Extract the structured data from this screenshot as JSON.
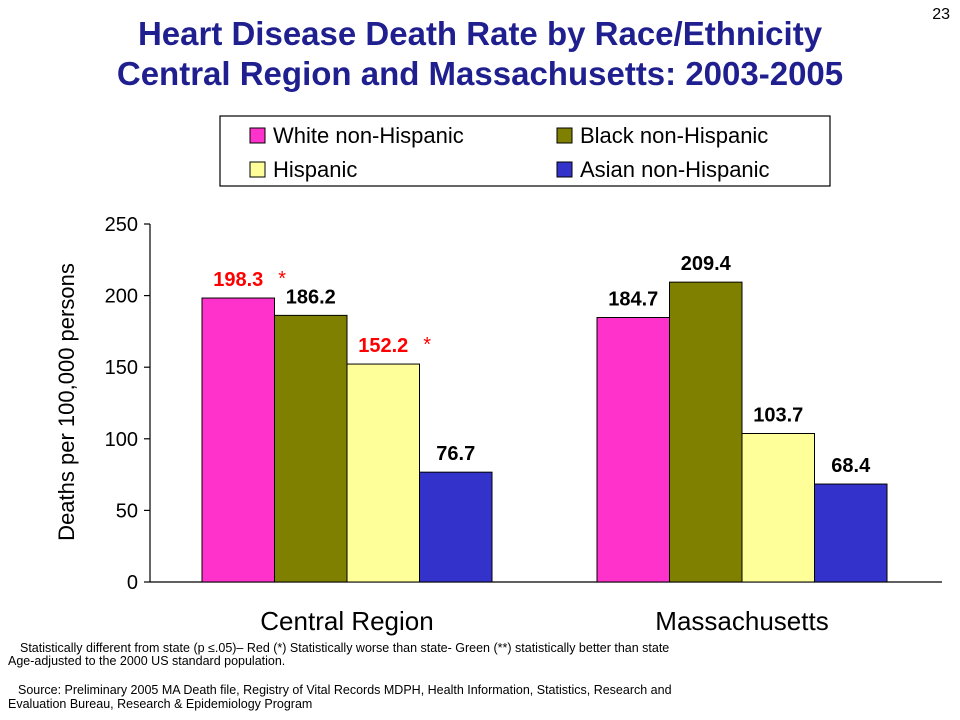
{
  "slide_number": "23",
  "title": {
    "line1": "Heart Disease Death Rate by Race/Ethnicity",
    "line2": "Central Region and Massachusetts: 2003-2005"
  },
  "chart_data": {
    "type": "bar",
    "categories": [
      "Central Region",
      "Massachusetts"
    ],
    "series": [
      {
        "name": "White non-Hispanic",
        "color": "#ff33cc",
        "values": [
          198.3,
          184.7
        ],
        "labels": [
          "198.3",
          "184.7"
        ],
        "label_colors": [
          "#ff0000",
          "#000000"
        ],
        "markers": [
          "*",
          ""
        ]
      },
      {
        "name": "Black non-Hispanic",
        "color": "#808000",
        "values": [
          186.2,
          209.4
        ],
        "labels": [
          "186.2",
          "209.4"
        ],
        "label_colors": [
          "#000000",
          "#000000"
        ],
        "markers": [
          "",
          ""
        ]
      },
      {
        "name": "Hispanic",
        "color": "#ffff99",
        "values": [
          152.2,
          103.7
        ],
        "labels": [
          "152.2",
          "103.7"
        ],
        "label_colors": [
          "#ff0000",
          "#000000"
        ],
        "markers": [
          "*",
          ""
        ]
      },
      {
        "name": "Asian non-Hispanic",
        "color": "#3333cc",
        "values": [
          76.7,
          68.4
        ],
        "labels": [
          "76.7",
          "68.4"
        ],
        "label_colors": [
          "#000000",
          "#000000"
        ],
        "markers": [
          "",
          ""
        ]
      }
    ],
    "ylabel": "Deaths per 100,000 persons",
    "xlabel": "",
    "ylim": [
      0,
      250
    ],
    "yticks": [
      "0",
      "50",
      "100",
      "150",
      "200",
      "250"
    ],
    "legend_position": "top",
    "grid": false
  },
  "notes": {
    "significance": "Statistically different from state (p ≤.05)– Red (*) Statistically worse than state- Green (**) statistically better than state",
    "age_adjusted": "Age-adjusted to the 2000 US standard population.",
    "source_line1": "Source: Preliminary 2005 MA Death file, Registry of Vital Records MDPH, Health Information, Statistics, Research and",
    "source_line2": "Evaluation Bureau, Research & Epidemiology Program"
  }
}
